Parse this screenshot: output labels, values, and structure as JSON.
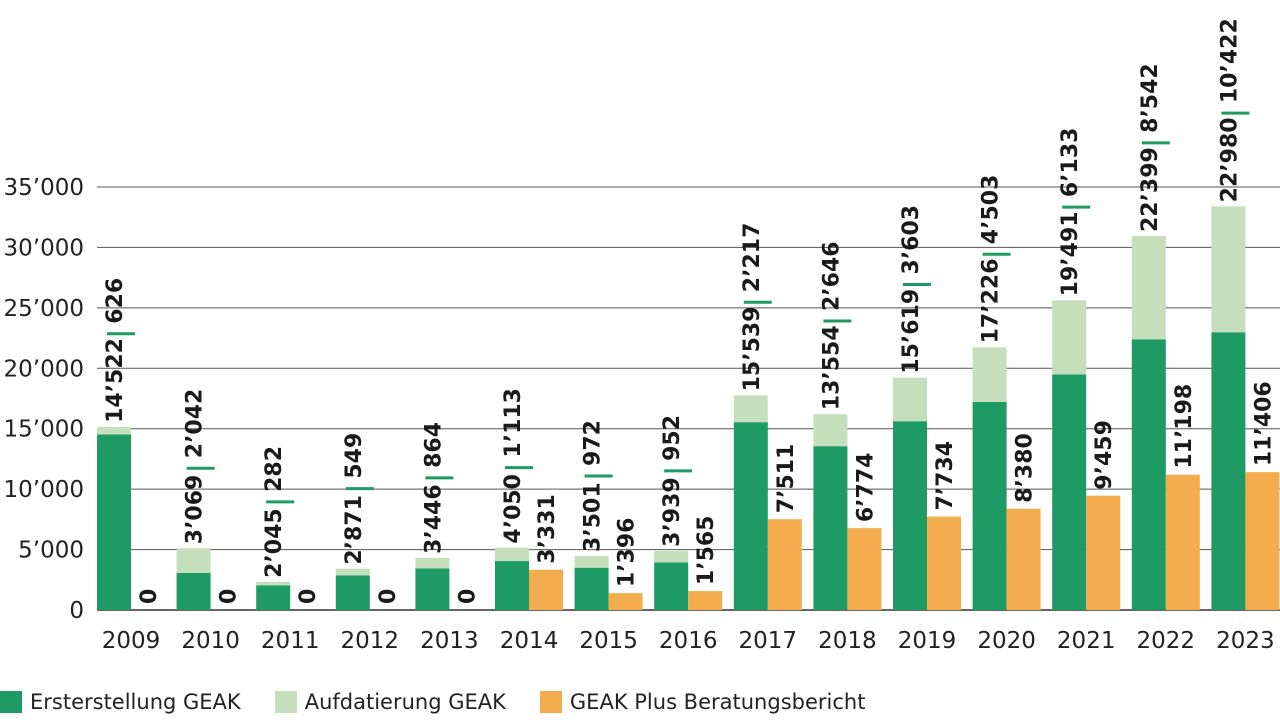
{
  "chart_data": {
    "type": "bar",
    "stacked_and_grouped": true,
    "categories": [
      "2009",
      "2010",
      "2011",
      "2012",
      "2013",
      "2014",
      "2015",
      "2016",
      "2017",
      "2018",
      "2019",
      "2020",
      "2021",
      "2022",
      "2023"
    ],
    "series": [
      {
        "name": "Ersterstellung GEAK",
        "color": "#1e9a64",
        "stack": "GEAK",
        "values": [
          14522,
          3069,
          2045,
          2871,
          3446,
          4050,
          3501,
          3939,
          15539,
          13554,
          15619,
          17226,
          19491,
          22399,
          22980
        ],
        "labels": [
          "14’522",
          "3’069",
          "2’045",
          "2’871",
          "3’446",
          "4’050",
          "3’501",
          "3’939",
          "15’539",
          "13’554",
          "15’619",
          "17’226",
          "19’491",
          "22’399",
          "22’980"
        ]
      },
      {
        "name": "Aufdatierung GEAK",
        "color": "#c5dfbd",
        "stack": "GEAK",
        "values": [
          626,
          2042,
          282,
          549,
          864,
          1113,
          972,
          952,
          2217,
          2646,
          3603,
          4503,
          6133,
          8542,
          10422
        ],
        "labels": [
          "626",
          "2’042",
          "282",
          "549",
          "864",
          "1’113",
          "972",
          "952",
          "2’217",
          "2’646",
          "3’603",
          "4’503",
          "6’133",
          "8’542",
          "10’422"
        ]
      },
      {
        "name": "GEAK Plus Beratungsbericht",
        "color": "#f3ad4e",
        "stack": "Plus",
        "values": [
          0,
          0,
          0,
          0,
          0,
          3331,
          1396,
          1565,
          7511,
          6774,
          7734,
          8380,
          9459,
          11198,
          11406
        ],
        "labels": [
          "0",
          "0",
          "0",
          "0",
          "0",
          "3’331",
          "1’396",
          "1’565",
          "7’511",
          "6’774",
          "7’734",
          "8’380",
          "9’459",
          "11’198",
          "11’406"
        ]
      }
    ],
    "ylim": [
      0,
      35000
    ],
    "yticks": [
      0,
      5000,
      10000,
      15000,
      20000,
      25000,
      30000,
      35000
    ],
    "ytick_labels": [
      "0",
      "5’000",
      "10’000",
      "15’000",
      "20’000",
      "25’000",
      "30’000",
      "35’000"
    ],
    "separator_color": "#1e9a64",
    "grid": true,
    "legend_position": "bottom-left"
  }
}
